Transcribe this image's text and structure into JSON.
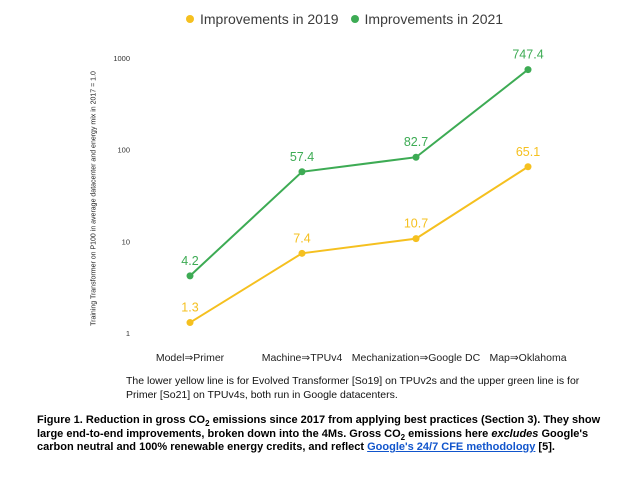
{
  "chart_data": {
    "type": "line",
    "categories": [
      "Model⇒Primer",
      "Machine⇒TPUv4",
      "Mechanization⇒Google DC",
      "Map⇒Oklahoma"
    ],
    "series": [
      {
        "name": "Improvements in 2019",
        "values": [
          1.3,
          7.4,
          10.7,
          65.1
        ],
        "labels": [
          "1.3",
          "7.4",
          "10.7",
          "65.1"
        ],
        "color": "#f5c01f"
      },
      {
        "name": "Improvements in 2021",
        "values": [
          4.2,
          57.4,
          82.7,
          747.4
        ],
        "labels": [
          "4.2",
          "57.4",
          "82.7",
          "747.4"
        ],
        "color": "#3dab54"
      }
    ],
    "yscale": "log",
    "yticks": [
      1,
      10,
      100,
      1000
    ],
    "ytick_labels": [
      "1",
      "10",
      "100",
      "1000"
    ],
    "ylim": [
      1,
      1000
    ],
    "ylabel": "Training Transformer on P100 in average datacenter and energy mix in 2017 = 1.0",
    "grid": false,
    "legend_position": "top"
  },
  "legend": {
    "items": [
      {
        "label": "Improvements in 2019",
        "color": "#f5c01f"
      },
      {
        "label": "Improvements in 2021",
        "color": "#3dab54"
      }
    ]
  },
  "note": {
    "text": "The lower yellow line is for Evolved Transformer [So19] on TPUv2s and the upper green line is for Primer [So21] on TPUv4s, both run in Google datacenters."
  },
  "caption": {
    "part1": "Figure 1. Reduction in gross CO",
    "sub1": "2",
    "part2": " emissions since 2017 from applying best practices (Section 3). They show large end-to-end improvements, broken down into the 4Ms. Gross CO",
    "sub2": "2",
    "part3": " emissions here ",
    "italic": "excludes",
    "part4": " Google's carbon neutral and 100% renewable energy credits, and reflect ",
    "link": "Google's 24/7 CFE methodology",
    "part5": " [5]."
  }
}
